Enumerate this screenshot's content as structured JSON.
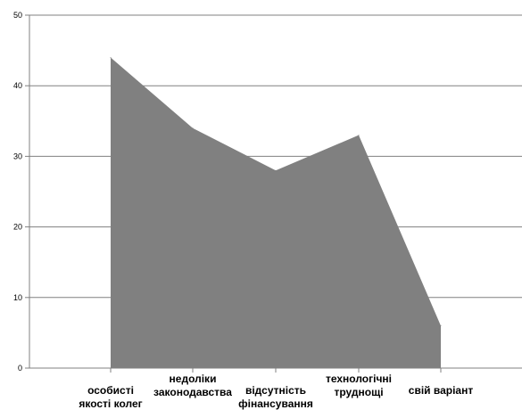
{
  "chart_data": {
    "type": "area",
    "title": "",
    "xlabel": "",
    "ylabel": "",
    "categories": [
      [
        "особисті",
        "якості колег"
      ],
      [
        "недоліки",
        "законодавства"
      ],
      [
        "відсутність",
        "фінансування"
      ],
      [
        "технологічні",
        "труднощі"
      ],
      [
        "свій варіант"
      ]
    ],
    "series": [
      {
        "values": [
          44,
          34,
          28,
          33,
          6
        ]
      }
    ],
    "ylim": [
      0,
      50
    ],
    "yticks": [
      "0",
      "10",
      "20",
      "30",
      "40",
      "50"
    ],
    "grid": true,
    "legend": "none",
    "colors": {
      "fill": "#808080",
      "grid": "#808080",
      "axis": "#808080",
      "text": "#000000"
    }
  }
}
